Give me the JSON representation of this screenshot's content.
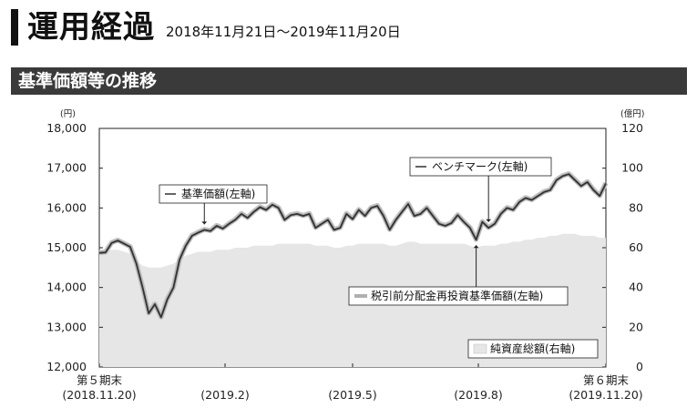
{
  "header": {
    "title": "運用経過",
    "period": "2018年11月21日～2019年11月20日"
  },
  "section": {
    "title": "基準価額等の推移"
  },
  "colors": {
    "nav_line": "#333333",
    "benchmark_halo": "#c4c4c4",
    "net_assets_fill": "#e6e6e6",
    "reinvested_line": "#b0b0b0"
  },
  "chart_data": {
    "type": "line",
    "left_unit": "(円)",
    "right_unit": "(億円)",
    "left_ylim": [
      12000,
      18000
    ],
    "right_ylim": [
      0,
      120
    ],
    "left_ticks": [
      "18,000",
      "17,000",
      "16,000",
      "15,000",
      "14,000",
      "13,000",
      "12,000"
    ],
    "right_ticks": [
      "120",
      "100",
      "80",
      "60",
      "40",
      "20",
      "0"
    ],
    "x_ticks": [
      {
        "line1": "第５期末",
        "line2": "(2018.11.20)"
      },
      {
        "line1": "",
        "line2": "(2019.2)"
      },
      {
        "line1": "",
        "line2": "(2019.5)"
      },
      {
        "line1": "",
        "line2": "(2019.8)"
      },
      {
        "line1": "第６期末",
        "line2": "(2019.11.20)"
      }
    ],
    "grid": false,
    "series": [
      {
        "name": "基準価額(左軸)",
        "axis": "left",
        "values": [
          14870,
          14880,
          15120,
          15180,
          15100,
          15020,
          14600,
          14000,
          13350,
          13580,
          13250,
          13700,
          14000,
          14700,
          15050,
          15300,
          15380,
          15450,
          15420,
          15550,
          15480,
          15600,
          15700,
          15850,
          15750,
          15900,
          16020,
          15950,
          16080,
          16000,
          15700,
          15820,
          15850,
          15800,
          15850,
          15500,
          15600,
          15700,
          15450,
          15500,
          15850,
          15720,
          15950,
          15800,
          16000,
          16050,
          15800,
          15450,
          15700,
          15900,
          16100,
          15800,
          15850,
          16000,
          15800,
          15600,
          15550,
          15620,
          15820,
          15650,
          15500,
          15200,
          15650,
          15500,
          15600,
          15850,
          16000,
          15950,
          16150,
          16250,
          16200,
          16300,
          16400,
          16450,
          16700,
          16800,
          16850,
          16700,
          16550,
          16650,
          16450,
          16300,
          16620
        ]
      },
      {
        "name": "ベンチマーク(左軸)",
        "axis": "left",
        "values": [
          14880,
          14890,
          15130,
          15190,
          15110,
          15030,
          14610,
          14010,
          13360,
          13590,
          13260,
          13710,
          14010,
          14710,
          15060,
          15310,
          15390,
          15460,
          15430,
          15560,
          15490,
          15610,
          15710,
          15860,
          15760,
          15910,
          16030,
          15960,
          16090,
          16010,
          15710,
          15830,
          15860,
          15810,
          15860,
          15510,
          15610,
          15710,
          15460,
          15510,
          15860,
          15730,
          15960,
          15810,
          16010,
          16060,
          15810,
          15460,
          15710,
          15910,
          16110,
          15810,
          15860,
          16010,
          15810,
          15610,
          15560,
          15630,
          15830,
          15660,
          15510,
          15210,
          15660,
          15510,
          15610,
          15860,
          16010,
          15960,
          16160,
          16260,
          16210,
          16310,
          16410,
          16460,
          16710,
          16810,
          16860,
          16710,
          16560,
          16660,
          16460,
          16310,
          16630
        ]
      },
      {
        "name": "税引前分配金再投資基準価額(左軸)",
        "axis": "left",
        "values": [
          14870,
          14880,
          15120,
          15180,
          15100,
          15020,
          14600,
          14000,
          13350,
          13580,
          13250,
          13700,
          14000,
          14700,
          15050,
          15300,
          15380,
          15450,
          15420,
          15550,
          15480,
          15600,
          15700,
          15850,
          15750,
          15900,
          16020,
          15950,
          16080,
          16000,
          15700,
          15820,
          15850,
          15800,
          15850,
          15500,
          15600,
          15700,
          15450,
          15500,
          15850,
          15720,
          15950,
          15800,
          16000,
          16050,
          15800,
          15450,
          15700,
          15900,
          16100,
          15800,
          15850,
          16000,
          15800,
          15600,
          15550,
          15620,
          15820,
          15650,
          15500,
          15200,
          15650,
          15500,
          15600,
          15850,
          16000,
          15950,
          16150,
          16250,
          16200,
          16300,
          16400,
          16450,
          16700,
          16800,
          16850,
          16700,
          16550,
          16650,
          16450,
          16300,
          16620
        ]
      },
      {
        "name": "純資産総額(右軸)",
        "axis": "right",
        "values": [
          58,
          58,
          59,
          59,
          58,
          57,
          53,
          51,
          50,
          50,
          50,
          51,
          52,
          54,
          56,
          57,
          58,
          58,
          58,
          59,
          59,
          59,
          60,
          60,
          60,
          61,
          61,
          61,
          61,
          62,
          62,
          62,
          62,
          62,
          62,
          61,
          61,
          61,
          60,
          60,
          61,
          61,
          62,
          62,
          62,
          62,
          62,
          61,
          61,
          62,
          63,
          63,
          62,
          62,
          62,
          62,
          62,
          62,
          62,
          62,
          61,
          60,
          61,
          61,
          61,
          62,
          62,
          63,
          63,
          64,
          64,
          65,
          65,
          66,
          66,
          67,
          67,
          67,
          66,
          66,
          66,
          65,
          65
        ]
      }
    ],
    "annotations": [
      {
        "label": "基準価額(左軸)",
        "series": "基準価額(左軸)",
        "index": 17
      },
      {
        "label": "ベンチマーク(左軸)",
        "series": "ベンチマーク(左軸)",
        "index": 63
      },
      {
        "label": "税引前分配金再投資基準価額(左軸)",
        "series": "税引前分配金再投資基準価額(左軸)",
        "index": 61
      },
      {
        "label": "純資産総額(右軸)",
        "series": "純資産総額(右軸)",
        "index": null
      }
    ]
  }
}
